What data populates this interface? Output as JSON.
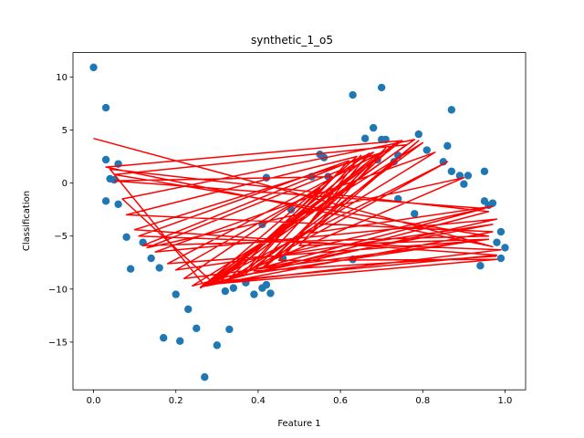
{
  "chart_data": {
    "type": "scatter",
    "title": "synthetic_1_o5",
    "xlabel": "Feature 1",
    "ylabel": "Classification",
    "xlim": [
      -0.05,
      1.05
    ],
    "ylim": [
      -19.5,
      12.3
    ],
    "xticks": [
      0.0,
      0.2,
      0.4,
      0.6,
      0.8,
      1.0
    ],
    "xtick_labels": [
      "0.0",
      "0.2",
      "0.4",
      "0.6",
      "0.8",
      "1.0"
    ],
    "yticks": [
      -15,
      -10,
      -5,
      0,
      5,
      10
    ],
    "ytick_labels": [
      "−15",
      "−10",
      "−5",
      "0",
      "5",
      "10"
    ],
    "grid": false,
    "point_color": "#1f77b4",
    "line_color": "#ff0000",
    "points": [
      {
        "x": 0.0,
        "y": 10.9
      },
      {
        "x": 0.03,
        "y": 7.1
      },
      {
        "x": 0.03,
        "y": 2.2
      },
      {
        "x": 0.04,
        "y": 0.4
      },
      {
        "x": 0.03,
        "y": -1.7
      },
      {
        "x": 0.06,
        "y": 1.8
      },
      {
        "x": 0.06,
        "y": -2.0
      },
      {
        "x": 0.05,
        "y": 0.3
      },
      {
        "x": 0.08,
        "y": -5.1
      },
      {
        "x": 0.09,
        "y": -8.1
      },
      {
        "x": 0.12,
        "y": -5.6
      },
      {
        "x": 0.14,
        "y": -7.1
      },
      {
        "x": 0.16,
        "y": -8.0
      },
      {
        "x": 0.17,
        "y": -14.6
      },
      {
        "x": 0.2,
        "y": -10.5
      },
      {
        "x": 0.21,
        "y": -14.9
      },
      {
        "x": 0.23,
        "y": -11.9
      },
      {
        "x": 0.25,
        "y": -13.7
      },
      {
        "x": 0.27,
        "y": -18.3
      },
      {
        "x": 0.3,
        "y": -15.3
      },
      {
        "x": 0.33,
        "y": -13.8
      },
      {
        "x": 0.32,
        "y": -10.2
      },
      {
        "x": 0.34,
        "y": -9.9
      },
      {
        "x": 0.37,
        "y": -9.4
      },
      {
        "x": 0.39,
        "y": -10.5
      },
      {
        "x": 0.41,
        "y": -9.9
      },
      {
        "x": 0.42,
        "y": -9.6
      },
      {
        "x": 0.43,
        "y": -10.4
      },
      {
        "x": 0.41,
        "y": -3.9
      },
      {
        "x": 0.42,
        "y": 0.5
      },
      {
        "x": 0.46,
        "y": -7.1
      },
      {
        "x": 0.48,
        "y": -2.5
      },
      {
        "x": 0.53,
        "y": 0.6
      },
      {
        "x": 0.55,
        "y": 2.7
      },
      {
        "x": 0.56,
        "y": 2.4
      },
      {
        "x": 0.57,
        "y": 0.6
      },
      {
        "x": 0.63,
        "y": 8.3
      },
      {
        "x": 0.63,
        "y": -7.2
      },
      {
        "x": 0.66,
        "y": 4.2
      },
      {
        "x": 0.68,
        "y": 5.2
      },
      {
        "x": 0.69,
        "y": 2.2
      },
      {
        "x": 0.7,
        "y": 9.0
      },
      {
        "x": 0.7,
        "y": 4.1
      },
      {
        "x": 0.71,
        "y": 4.1
      },
      {
        "x": 0.73,
        "y": 2.0
      },
      {
        "x": 0.74,
        "y": 2.6
      },
      {
        "x": 0.74,
        "y": -1.5
      },
      {
        "x": 0.78,
        "y": -2.9
      },
      {
        "x": 0.79,
        "y": 4.6
      },
      {
        "x": 0.81,
        "y": 3.1
      },
      {
        "x": 0.85,
        "y": 2.0
      },
      {
        "x": 0.86,
        "y": 3.5
      },
      {
        "x": 0.87,
        "y": 6.9
      },
      {
        "x": 0.87,
        "y": 1.1
      },
      {
        "x": 0.89,
        "y": 0.7
      },
      {
        "x": 0.91,
        "y": 0.7
      },
      {
        "x": 0.9,
        "y": -0.1
      },
      {
        "x": 0.95,
        "y": 1.1
      },
      {
        "x": 0.94,
        "y": -7.8
      },
      {
        "x": 0.95,
        "y": -1.7
      },
      {
        "x": 0.96,
        "y": -2.1
      },
      {
        "x": 0.97,
        "y": -1.9
      },
      {
        "x": 0.98,
        "y": -5.6
      },
      {
        "x": 0.99,
        "y": -4.6
      },
      {
        "x": 0.99,
        "y": -7.1
      },
      {
        "x": 1.0,
        "y": -6.1
      }
    ],
    "line": [
      {
        "x": 0.0,
        "y": 4.2
      },
      {
        "x": 0.97,
        "y": -6.0
      },
      {
        "x": 0.03,
        "y": 1.5
      },
      {
        "x": 0.75,
        "y": 4.0
      },
      {
        "x": 0.28,
        "y": -9.6
      },
      {
        "x": 0.96,
        "y": -2.7
      },
      {
        "x": 0.04,
        "y": 1.3
      },
      {
        "x": 0.27,
        "y": -9.7
      },
      {
        "x": 0.78,
        "y": 4.1
      },
      {
        "x": 0.07,
        "y": -1.5
      },
      {
        "x": 0.29,
        "y": -9.4
      },
      {
        "x": 0.68,
        "y": 2.9
      },
      {
        "x": 0.12,
        "y": -5.9
      },
      {
        "x": 0.96,
        "y": -5.0
      },
      {
        "x": 0.05,
        "y": 0.8
      },
      {
        "x": 0.76,
        "y": 3.6
      },
      {
        "x": 0.3,
        "y": -9.3
      },
      {
        "x": 0.98,
        "y": -6.8
      },
      {
        "x": 0.1,
        "y": -4.4
      },
      {
        "x": 0.72,
        "y": 3.1
      },
      {
        "x": 0.26,
        "y": -9.8
      },
      {
        "x": 0.97,
        "y": -4.6
      },
      {
        "x": 0.08,
        "y": -3.0
      },
      {
        "x": 0.64,
        "y": 2.5
      },
      {
        "x": 0.31,
        "y": -9.2
      },
      {
        "x": 0.98,
        "y": -3.4
      },
      {
        "x": 0.15,
        "y": -6.5
      },
      {
        "x": 0.83,
        "y": 2.9
      },
      {
        "x": 0.34,
        "y": -8.8
      },
      {
        "x": 0.92,
        "y": -5.5
      },
      {
        "x": 0.18,
        "y": -7.6
      },
      {
        "x": 0.69,
        "y": 2.7
      },
      {
        "x": 0.29,
        "y": -9.5
      },
      {
        "x": 0.99,
        "y": -6.3
      },
      {
        "x": 0.11,
        "y": -5.0
      },
      {
        "x": 0.62,
        "y": 2.1
      },
      {
        "x": 0.37,
        "y": -8.5
      },
      {
        "x": 0.8,
        "y": 3.8
      },
      {
        "x": 0.24,
        "y": -9.7
      },
      {
        "x": 0.95,
        "y": -2.4
      },
      {
        "x": 0.05,
        "y": 0.2
      },
      {
        "x": 0.58,
        "y": 0.6
      },
      {
        "x": 0.26,
        "y": -9.9
      },
      {
        "x": 0.74,
        "y": 3.9
      },
      {
        "x": 0.41,
        "y": -8.0
      },
      {
        "x": 0.97,
        "y": -3.9
      },
      {
        "x": 0.2,
        "y": -8.2
      },
      {
        "x": 0.55,
        "y": -0.5
      },
      {
        "x": 0.33,
        "y": -9.0
      },
      {
        "x": 0.9,
        "y": 0.5
      },
      {
        "x": 0.13,
        "y": -6.1
      },
      {
        "x": 0.6,
        "y": 1.2
      },
      {
        "x": 0.36,
        "y": -8.6
      },
      {
        "x": 0.86,
        "y": 2.0
      },
      {
        "x": 0.27,
        "y": -9.6
      },
      {
        "x": 0.98,
        "y": -7.2
      },
      {
        "x": 0.45,
        "y": -7.3
      },
      {
        "x": 0.67,
        "y": 2.8
      },
      {
        "x": 0.22,
        "y": -9.0
      },
      {
        "x": 0.96,
        "y": -5.3
      },
      {
        "x": 0.5,
        "y": -5.9
      },
      {
        "x": 0.71,
        "y": 3.3
      },
      {
        "x": 0.42,
        "y": -7.8
      },
      {
        "x": 0.79,
        "y": 4.0
      },
      {
        "x": 0.53,
        "y": -4.7
      },
      {
        "x": 0.97,
        "y": -2.2
      },
      {
        "x": 0.47,
        "y": -6.6
      },
      {
        "x": 0.65,
        "y": 2.6
      },
      {
        "x": 0.39,
        "y": -8.3
      },
      {
        "x": 0.98,
        "y": -6.9
      }
    ]
  }
}
